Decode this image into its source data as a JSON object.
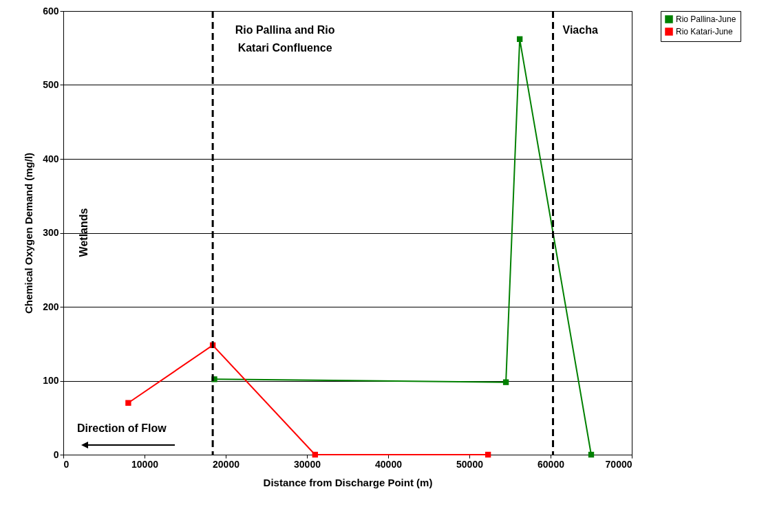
{
  "chart_data": {
    "type": "line",
    "xlabel": "Distance from Discharge Point (m)",
    "ylabel": "Chemical Oxygen Demand (mg/l)",
    "series": [
      {
        "name": "Rio Pallina-June",
        "color": "#008000",
        "x": [
          18600,
          54500,
          56200,
          65000
        ],
        "values": [
          102,
          98,
          562,
          0
        ]
      },
      {
        "name": "Rio Katari-June",
        "color": "#ff0000",
        "x": [
          8000,
          18400,
          31000,
          52300
        ],
        "values": [
          70,
          148,
          0,
          0
        ]
      }
    ],
    "xlim": [
      0,
      70000
    ],
    "xticks": [
      0,
      10000,
      20000,
      30000,
      40000,
      50000,
      60000,
      70000
    ],
    "ylim": [
      0,
      600
    ],
    "yticks": [
      0,
      100,
      200,
      300,
      400,
      500,
      600
    ],
    "ref_lines": [
      {
        "axis": "x",
        "value": 18400,
        "label": "Rio Pallina and Rio\nKatari Confluence",
        "color": "#000000",
        "line_style": "dashed"
      },
      {
        "axis": "x",
        "value": 60300,
        "label": "Viacha",
        "color": "#000000",
        "line_style": "dashed"
      }
    ],
    "annotations": [
      "Wetlands",
      "Direction of Flow"
    ],
    "grid": "y",
    "legend": "right",
    "marker": "square",
    "line_style": "solid"
  }
}
